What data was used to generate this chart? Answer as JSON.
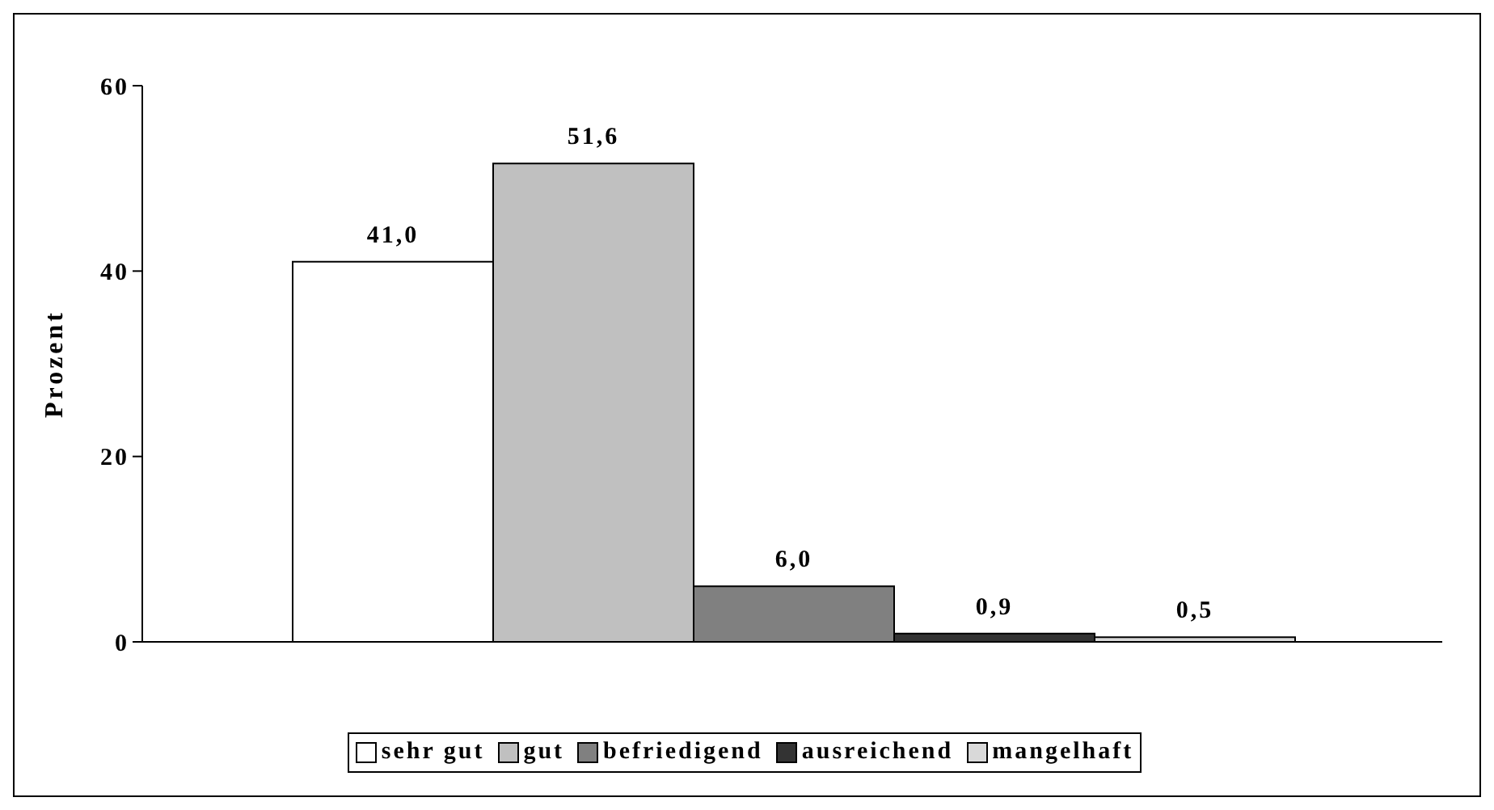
{
  "chart_data": {
    "type": "bar",
    "ylabel": "Prozent",
    "categories": [
      null
    ],
    "series": [
      {
        "name": "sehr gut",
        "color": "#ffffff",
        "values": [
          41.0
        ],
        "value_labels": [
          "41,0"
        ]
      },
      {
        "name": "gut",
        "color": "#c0c0c0",
        "values": [
          51.6
        ],
        "value_labels": [
          "51,6"
        ]
      },
      {
        "name": "befriedigend",
        "color": "#808080",
        "values": [
          6.0
        ],
        "value_labels": [
          "6,0"
        ]
      },
      {
        "name": "ausreichend",
        "color": "#333333",
        "values": [
          0.9
        ],
        "value_labels": [
          "0,9"
        ]
      },
      {
        "name": "mangelhaft",
        "color": "#d9d9d9",
        "values": [
          0.5
        ],
        "value_labels": [
          "0,5"
        ]
      }
    ],
    "ylim": [
      0,
      60
    ],
    "yticks": [
      0,
      20,
      40,
      60
    ],
    "grid": false,
    "legend": "bottom"
  }
}
